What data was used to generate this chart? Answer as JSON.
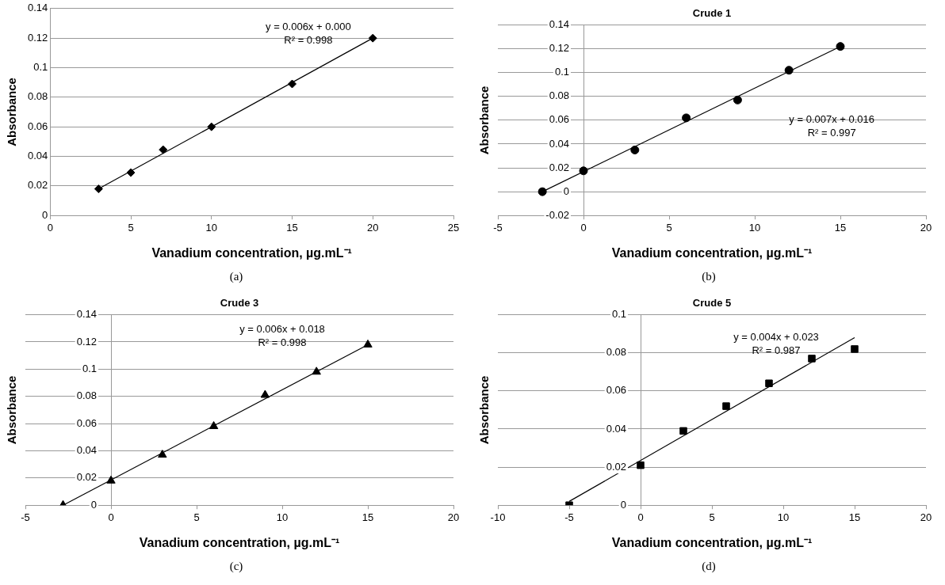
{
  "chart_data": [
    {
      "type": "scatter",
      "xlabel": "Vanadium concentration, µg.mL⁻¹",
      "ylabel": "Absorbance",
      "grid": "y",
      "xlim": [
        0,
        25
      ],
      "xticks": [
        0,
        5,
        10,
        15,
        20,
        25
      ],
      "ylim": [
        0,
        0.14
      ],
      "yticks": [
        0,
        0.02,
        0.04,
        0.06,
        0.08,
        0.1,
        0.12,
        0.14
      ],
      "series": [
        {
          "marker": "diamond",
          "color": "#000000",
          "x": [
            3,
            5,
            7,
            10,
            15,
            20
          ],
          "values": [
            0.018,
            0.029,
            0.0445,
            0.06,
            0.089,
            0.12
          ]
        },
        {
          "type": "line",
          "color": "#000000",
          "x": [
            3,
            20
          ],
          "values": [
            0.018,
            0.12
          ]
        }
      ],
      "annotations": [
        "y = 0.006x + 0.000",
        "R² = 0.998",
        "(a)"
      ]
    },
    {
      "type": "scatter",
      "title": "Crude 1",
      "xlabel": "Vanadium concentration, µg.mL⁻¹",
      "ylabel": "Absorbance",
      "grid": "y",
      "xlim": [
        -5,
        20
      ],
      "xticks": [
        -5,
        0,
        5,
        10,
        15,
        20
      ],
      "ylim": [
        -0.02,
        0.14
      ],
      "yticks": [
        -0.02,
        0,
        0.02,
        0.04,
        0.06,
        0.08,
        0.1,
        0.12,
        0.14
      ],
      "series": [
        {
          "marker": "circle",
          "color": "#000000",
          "x": [
            -2.4,
            0,
            3,
            6,
            9,
            12,
            15
          ],
          "values": [
            0,
            0.0175,
            0.035,
            0.062,
            0.077,
            0.102,
            0.122
          ]
        },
        {
          "type": "line",
          "color": "#000000",
          "x": [
            -2.4,
            15
          ],
          "values": [
            0,
            0.122
          ]
        }
      ],
      "annotations": [
        "y = 0.007x + 0.016",
        "R² = 0.997",
        "(b)"
      ]
    },
    {
      "type": "scatter",
      "title": "Crude 3",
      "xlabel": "Vanadium concentration, µg.mL⁻¹",
      "ylabel": "Absorbance",
      "grid": "y",
      "xlim": [
        -5,
        20
      ],
      "xticks": [
        -5,
        0,
        5,
        10,
        15,
        20
      ],
      "ylim": [
        0,
        0.14
      ],
      "yticks": [
        0,
        0.02,
        0.04,
        0.06,
        0.08,
        0.1,
        0.12,
        0.14
      ],
      "series": [
        {
          "marker": "triangle",
          "color": "#000000",
          "x": [
            -2.8,
            0,
            3,
            6,
            9,
            12,
            15
          ],
          "values": [
            0,
            0.018,
            0.037,
            0.058,
            0.081,
            0.098,
            0.118
          ]
        },
        {
          "type": "line",
          "color": "#000000",
          "x": [
            -2.8,
            15
          ],
          "values": [
            0,
            0.118
          ]
        }
      ],
      "annotations": [
        "y = 0.006x + 0.018",
        "R² = 0.998",
        "(c)"
      ]
    },
    {
      "type": "scatter",
      "title": "Crude 5",
      "xlabel": "Vanadium concentration, µg.mL⁻¹",
      "ylabel": "Absorbance",
      "grid": "y",
      "xlim": [
        -10,
        20
      ],
      "xticks": [
        -10,
        -5,
        0,
        5,
        10,
        15,
        20
      ],
      "ylim": [
        0,
        0.1
      ],
      "yticks": [
        0,
        0.02,
        0.04,
        0.06,
        0.08,
        0.1
      ],
      "series": [
        {
          "marker": "square",
          "color": "#000000",
          "x": [
            -5,
            0,
            3,
            6,
            9,
            12,
            15
          ],
          "values": [
            0,
            0.021,
            0.039,
            0.052,
            0.064,
            0.077,
            0.082
          ]
        },
        {
          "type": "line",
          "color": "#000000",
          "x": [
            -5,
            15
          ],
          "values": [
            0.002,
            0.088
          ]
        }
      ],
      "annotations": [
        "y = 0.004x + 0.023",
        "R² = 0.987",
        "(d)"
      ]
    }
  ]
}
